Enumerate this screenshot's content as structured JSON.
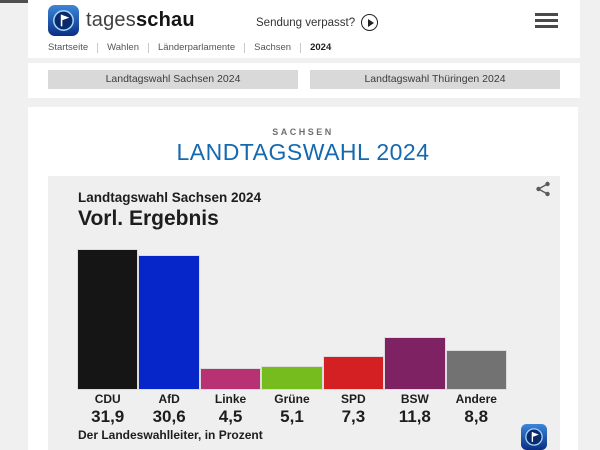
{
  "header": {
    "brand_regular": "tages",
    "brand_bold": "schau",
    "sendung_verpasst": "Sendung verpasst?"
  },
  "breadcrumb": [
    "Startseite",
    "Wahlen",
    "Länderparlamente",
    "Sachsen",
    "2024"
  ],
  "tabs": [
    {
      "label": "Landtagswahl Sachsen 2024",
      "active": true
    },
    {
      "label": "Landtagswahl Thüringen 2024",
      "active": false
    }
  ],
  "main": {
    "kicker": "SACHSEN",
    "title": "LANDTAGSWAHL 2024",
    "title_color": "#1569b0"
  },
  "chart": {
    "kicker": "Landtagswahl Sachsen 2024",
    "title": "Vorl. Ergebnis",
    "source": "Der Landeswahlleiter, in Prozent"
  },
  "chart_data": {
    "type": "bar",
    "title": "Landtagswahl Sachsen 2024 — Vorl. Ergebnis",
    "categories": [
      "CDU",
      "AfD",
      "Linke",
      "Grüne",
      "SPD",
      "BSW",
      "Andere"
    ],
    "values": [
      31.9,
      30.6,
      4.5,
      5.1,
      7.3,
      11.8,
      8.8
    ],
    "values_display": [
      "31,9",
      "30,6",
      "4,5",
      "5,1",
      "7,3",
      "11,8",
      "8,8"
    ],
    "colors": [
      "#151515",
      "#0626c9",
      "#b83273",
      "#77bc1f",
      "#d42022",
      "#7f2264",
      "#727272"
    ],
    "ylabel": "Prozent",
    "ylim": [
      0,
      32.1
    ],
    "grid": false,
    "legend": false,
    "source": "Der Landeswahlleiter, in Prozent"
  },
  "icons": {
    "logo": "tagesschau-globe-logo",
    "play": "play-icon",
    "menu": "hamburger-icon",
    "share": "share-icon"
  }
}
